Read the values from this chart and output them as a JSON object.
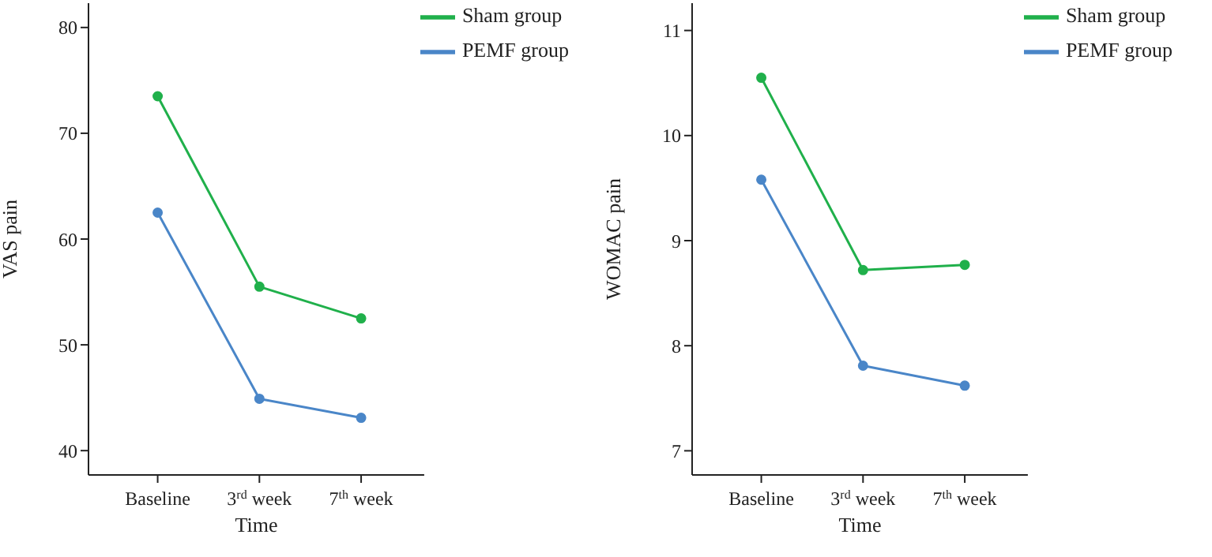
{
  "chart_data": [
    {
      "type": "line",
      "xlabel": "Time",
      "ylabel": "VAS pain",
      "categories": [
        "Baseline",
        "3$^{rd}$ week",
        "7$^{th}$ week"
      ],
      "series": [
        {
          "name": "Sham group",
          "color": "#20b04b",
          "values": [
            73.5,
            55.5,
            52.5
          ]
        },
        {
          "name": "PEMF group",
          "color": "#4a86c8",
          "values": [
            62.5,
            44.9,
            43.1
          ]
        }
      ],
      "ylim": [
        37.7,
        82.3
      ],
      "yticks": [
        40,
        50,
        60,
        70,
        80
      ],
      "grid": false,
      "legend": "top right",
      "marker": "circle",
      "line_style": "solid"
    },
    {
      "type": "line",
      "xlabel": "Time",
      "ylabel": "WOMAC pain",
      "categories": [
        "Baseline",
        "3$^{rd}$ week",
        "7$^{th}$ week"
      ],
      "series": [
        {
          "name": "Sham group",
          "color": "#20b04b",
          "values": [
            10.55,
            8.72,
            8.77
          ]
        },
        {
          "name": "PEMF group",
          "color": "#4a86c8",
          "values": [
            9.58,
            7.81,
            7.62
          ]
        }
      ],
      "ylim": [
        6.77,
        11.26
      ],
      "yticks": [
        7,
        8,
        9,
        10,
        11
      ],
      "grid": false,
      "legend": "top right",
      "marker": "circle",
      "line_style": "solid"
    }
  ]
}
